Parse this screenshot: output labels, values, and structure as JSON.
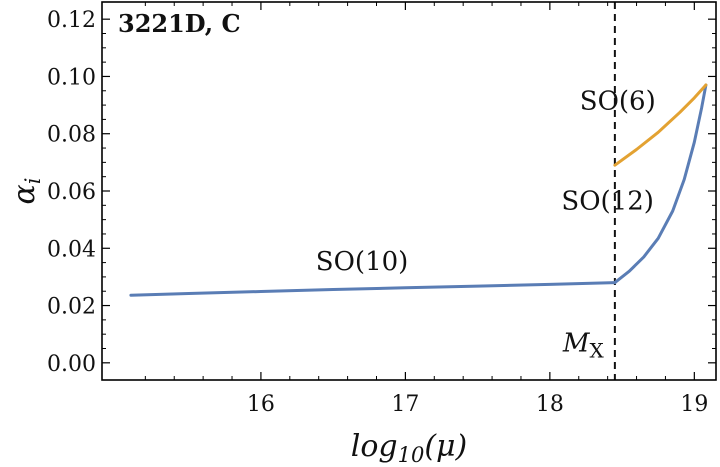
{
  "chart_data": {
    "type": "line",
    "title": "3221D, C",
    "xlabel": "log10(μ)",
    "ylabel": "αi",
    "xlim": [
      14.9,
      19.15
    ],
    "ylim": [
      -0.006,
      0.126
    ],
    "xticks": [
      16,
      17,
      18,
      19
    ],
    "yticks": [
      0.0,
      0.02,
      0.04,
      0.06,
      0.08,
      0.1,
      0.12
    ],
    "yticklabels": [
      "0.00",
      "0.02",
      "0.04",
      "0.06",
      "0.08",
      "0.10",
      "0.12"
    ],
    "vline": {
      "x": 18.45,
      "label": "MX",
      "style": "dashed"
    },
    "series": [
      {
        "name": "SO(10)",
        "color": "#5a7db5",
        "x": [
          15.1,
          15.5,
          16.0,
          16.5,
          17.0,
          17.5,
          18.0,
          18.45
        ],
        "y": [
          0.0236,
          0.0242,
          0.0249,
          0.0256,
          0.0262,
          0.0268,
          0.0274,
          0.028
        ]
      },
      {
        "name": "SO(12)",
        "color": "#5a7db5",
        "x": [
          18.45,
          18.55,
          18.65,
          18.75,
          18.85,
          18.93,
          19.0,
          19.05,
          19.08
        ],
        "y": [
          0.028,
          0.032,
          0.037,
          0.0435,
          0.053,
          0.064,
          0.077,
          0.089,
          0.097
        ]
      },
      {
        "name": "SO(6)",
        "color": "#e3a232",
        "x": [
          18.45,
          18.6,
          18.75,
          18.9,
          19.0,
          19.08
        ],
        "y": [
          0.069,
          0.0745,
          0.0805,
          0.0875,
          0.0925,
          0.097
        ]
      }
    ],
    "annotations": [
      {
        "text": "SO(10)",
        "x": 16.7,
        "y": 0.0325
      },
      {
        "text": "SO(6)",
        "x": 18.47,
        "y": 0.0885
      },
      {
        "text": "SO(12)",
        "x": 18.4,
        "y": 0.0535
      }
    ]
  }
}
